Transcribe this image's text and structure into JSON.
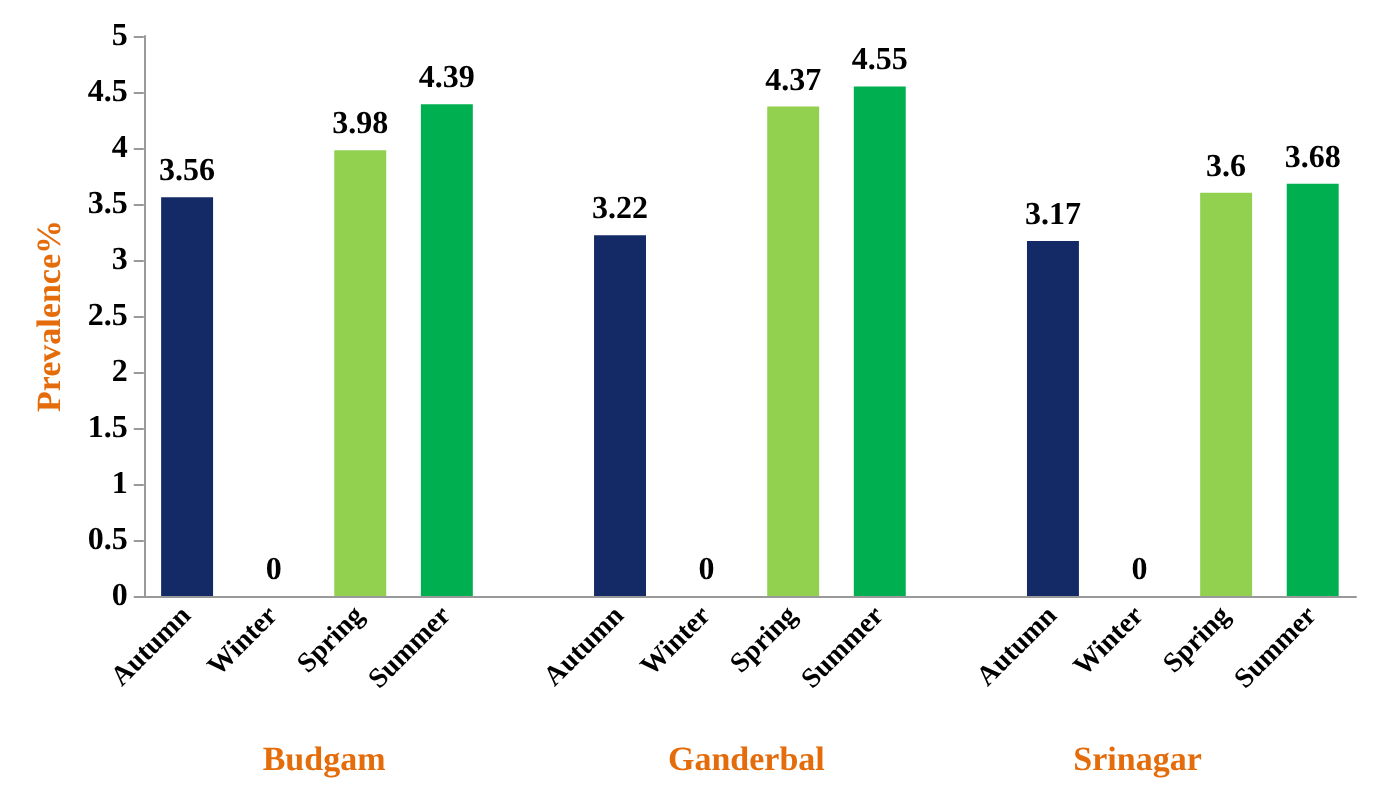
{
  "chart_data": {
    "type": "bar",
    "ylabel": "Prevalence%",
    "categories": [
      "Autumn",
      "Winter",
      "Spring",
      "Summer",
      null,
      "Autumn",
      "Winter",
      "Spring",
      "Summer",
      null,
      "Autumn",
      "Winter",
      "Spring",
      "Summer"
    ],
    "values": [
      3.56,
      0,
      3.98,
      4.39,
      null,
      3.22,
      0,
      4.37,
      4.55,
      null,
      3.17,
      0,
      3.6,
      3.68
    ],
    "colors": [
      "#142a66",
      "#142a66",
      "#92d050",
      "#00b050",
      "#142a66",
      "#142a66",
      "#142a66",
      "#92d050",
      "#00b050",
      "#142a66",
      "#142a66",
      "#142a66",
      "#92d050",
      "#00b050"
    ],
    "ylim": [
      0,
      5
    ],
    "yticks": [
      0,
      0.5,
      1,
      1.5,
      2,
      2.5,
      3,
      3.5,
      4,
      4.5,
      5
    ],
    "data_labels": true,
    "grid": false,
    "annotations": [
      "Budgam",
      "Ganderbal",
      "Srinagar"
    ]
  }
}
